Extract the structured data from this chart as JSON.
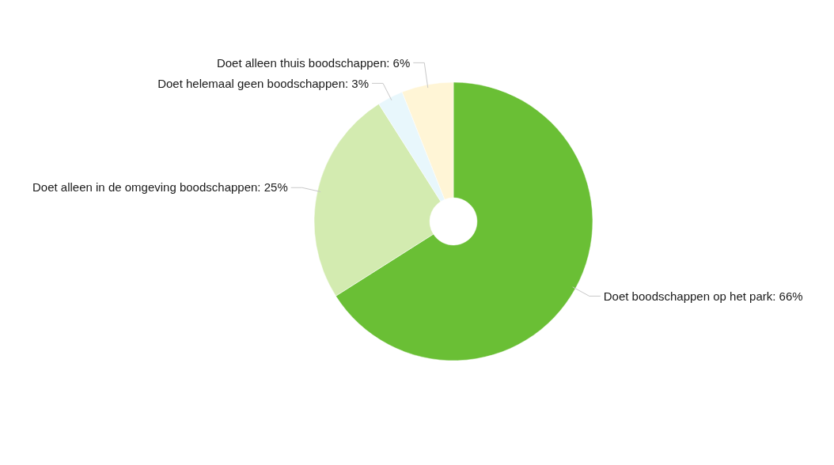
{
  "chart_data": {
    "type": "donut",
    "categories": [
      "Doet boodschappen op het park",
      "Doet alleen in de omgeving boodschappen",
      "Doet helemaal geen boodschappen",
      "Doet alleen thuis boodschappen"
    ],
    "values": [
      66,
      25,
      3,
      6
    ],
    "colors": [
      "#6abf35",
      "#d3ebb0",
      "#e8f7fc",
      "#fff5d6"
    ],
    "value_labels": [
      "66%",
      "25%",
      "3%",
      "6%"
    ]
  }
}
